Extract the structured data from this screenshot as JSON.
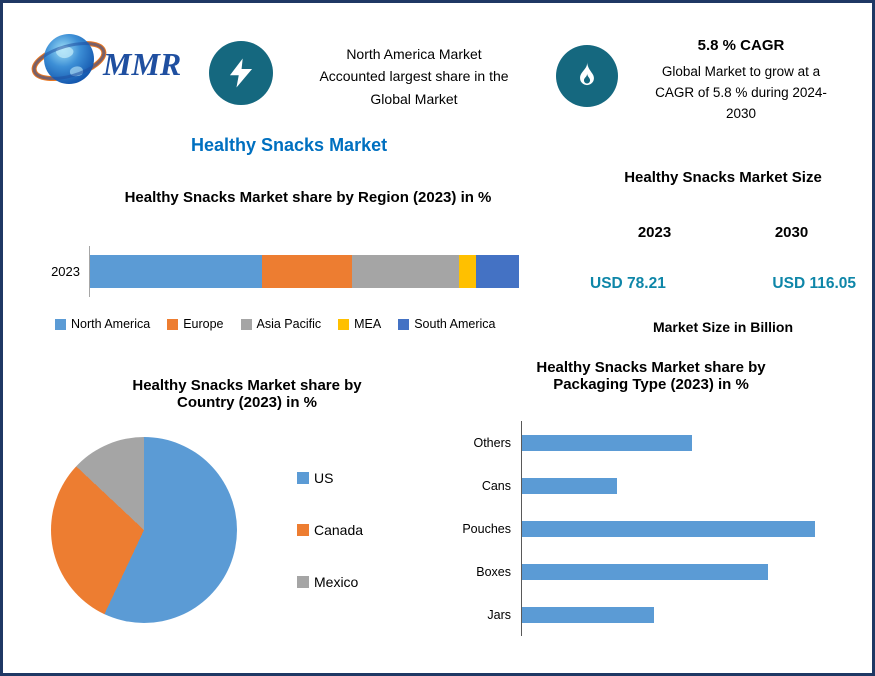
{
  "header": {
    "logo_text": "MMR",
    "highlight": {
      "lines": [
        "North America Market",
        "Accounted largest share in the",
        "Global Market"
      ]
    },
    "cagr": {
      "title": "5.8 % CAGR",
      "lines": [
        "Global Market to grow at a",
        "CAGR of 5.8 % during 2024-",
        "2030"
      ]
    }
  },
  "page_title": "Healthy Snacks Market",
  "market_size": {
    "title": "Healthy Snacks Market Size",
    "col1_year": "2023",
    "col2_year": "2030",
    "col1_value": "USD 78.21",
    "col2_value": "USD 116.05",
    "unit_label": "Market Size in Billion"
  },
  "colors": {
    "accent_blue": "#0070C0",
    "value_teal": "#0E86A8",
    "icon_circle_teal": "#15687F",
    "page_border_navy": "#1F3864",
    "bar_blue": "#5B9BD5"
  },
  "chart_data": [
    {
      "id": "region",
      "type": "bar",
      "subtype": "stacked-horizontal",
      "title": "Healthy Snacks Market share by Region (2023) in %",
      "category": "2023",
      "series": [
        {
          "name": "North America",
          "value": 40,
          "color": "#5B9BD5"
        },
        {
          "name": "Europe",
          "value": 21,
          "color": "#ED7D31"
        },
        {
          "name": "Asia Pacific",
          "value": 25,
          "color": "#A5A5A5"
        },
        {
          "name": "MEA",
          "value": 4,
          "color": "#FFC000"
        },
        {
          "name": "South America",
          "value": 10,
          "color": "#4472C4"
        }
      ],
      "legend_position": "bottom",
      "grid": false
    },
    {
      "id": "country",
      "type": "pie",
      "title": "Healthy Snacks Market share by Country (2023) in %",
      "title_lines": [
        "Healthy Snacks Market share by",
        "Country (2023) in %"
      ],
      "slices": [
        {
          "name": "US",
          "value": 57,
          "color": "#5B9BD5"
        },
        {
          "name": "Canada",
          "value": 30,
          "color": "#ED7D31"
        },
        {
          "name": "Mexico",
          "value": 13,
          "color": "#A5A5A5"
        }
      ],
      "legend_position": "right",
      "start_angle_deg": 0,
      "direction": "clockwise"
    },
    {
      "id": "packaging",
      "type": "bar",
      "subtype": "horizontal",
      "title": "Healthy Snacks Market share by Packaging Type (2023) in %",
      "title_lines": [
        "Healthy Snacks Market share by",
        "Packaging Type (2023) in %"
      ],
      "categories": [
        "Others",
        "Cans",
        "Pouches",
        "Boxes",
        "Jars"
      ],
      "values": [
        18,
        10,
        31,
        26,
        14
      ],
      "xmax": 35,
      "bar_color": "#5B9BD5",
      "grid": false
    }
  ]
}
